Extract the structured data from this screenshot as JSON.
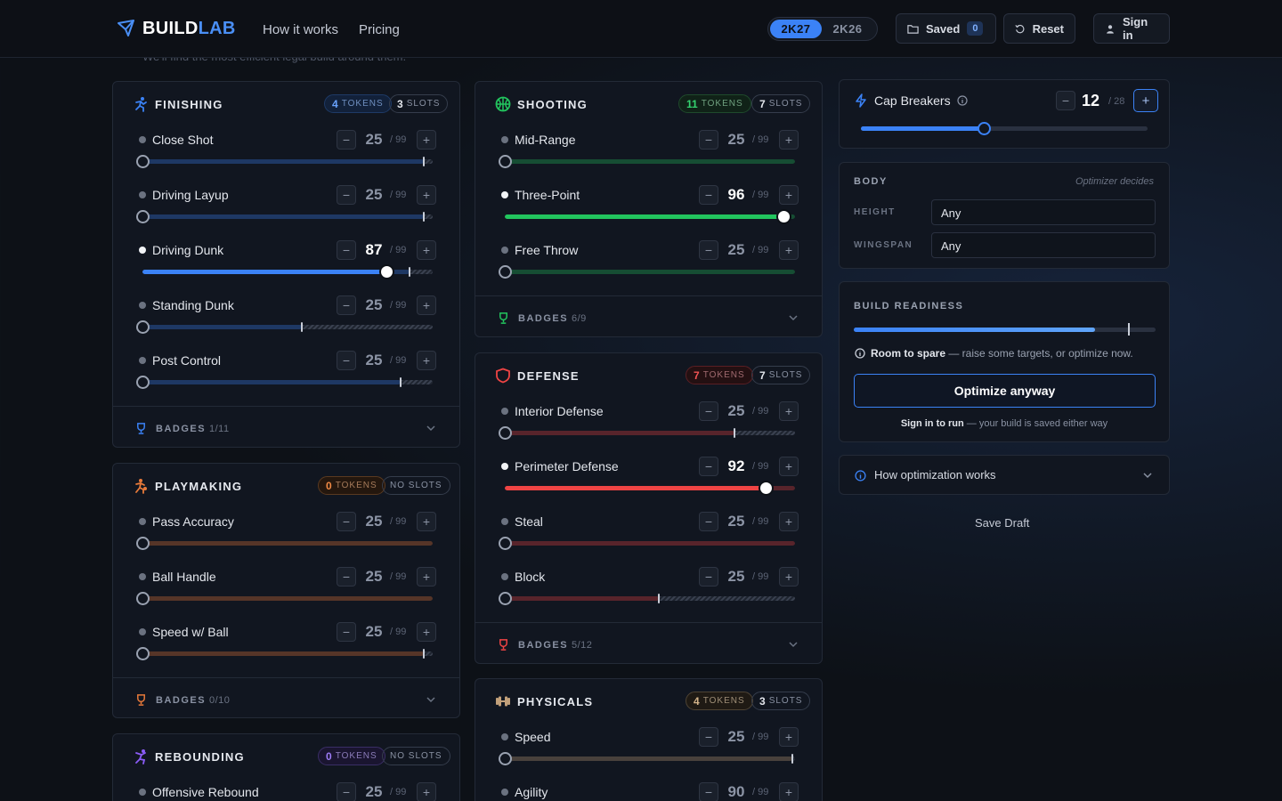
{
  "header": {
    "logo_part1": "BUILD",
    "logo_part2": "LAB",
    "nav": [
      "How it works",
      "Pricing"
    ],
    "versions": [
      "2K27",
      "2K26"
    ],
    "active_version": "2K27",
    "saved_label": "Saved",
    "saved_count": "0",
    "reset_label": "Reset",
    "signin_label": "Sign in",
    "subtext_peek": "We'll find the most efficient legal build around them."
  },
  "finishing": {
    "title": "FINISHING",
    "tokens_num": "4",
    "tokens_label": "TOKENS",
    "slots_num": "3",
    "slots_label": "SLOTS",
    "color": "#3b82f6",
    "attributes": [
      {
        "name": "Close Shot",
        "value": "25",
        "max": "/ 99",
        "cap": 0.97,
        "level": 0
      },
      {
        "name": "Driving Layup",
        "value": "25",
        "max": "/ 99",
        "cap": 0.97,
        "level": 0
      },
      {
        "name": "Driving Dunk",
        "value": "87",
        "max": "/ 99",
        "cap": 0.92,
        "level": 0.84
      },
      {
        "name": "Standing Dunk",
        "value": "25",
        "max": "/ 99",
        "cap": 0.55,
        "level": 0
      },
      {
        "name": "Post Control",
        "value": "25",
        "max": "/ 99",
        "cap": 0.89,
        "level": 0
      }
    ],
    "badges_label": "BADGES",
    "badges_count": "1/11"
  },
  "playmaking": {
    "title": "PLAYMAKING",
    "tokens_num": "0",
    "tokens_label": "TOKENS",
    "slots_label": "NO SLOTS",
    "color": "#e87a3a",
    "attributes": [
      {
        "name": "Pass Accuracy",
        "value": "25",
        "max": "/ 99",
        "cap": 1,
        "level": 0
      },
      {
        "name": "Ball Handle",
        "value": "25",
        "max": "/ 99",
        "cap": 1,
        "level": 0
      },
      {
        "name": "Speed w/ Ball",
        "value": "25",
        "max": "/ 99",
        "cap": 0.97,
        "level": 0
      }
    ],
    "badges_label": "BADGES",
    "badges_count": "0/10"
  },
  "rebounding": {
    "title": "REBOUNDING",
    "tokens_num": "0",
    "tokens_label": "TOKENS",
    "slots_label": "NO SLOTS",
    "color": "#8b5cf6",
    "attributes": [
      {
        "name": "Offensive Rebound",
        "value": "25",
        "max": "/ 99"
      }
    ]
  },
  "shooting": {
    "title": "SHOOTING",
    "tokens_num": "11",
    "tokens_label": "TOKENS",
    "slots_num": "7",
    "slots_label": "SLOTS",
    "color": "#22c55e",
    "attributes": [
      {
        "name": "Mid-Range",
        "value": "25",
        "max": "/ 99",
        "cap": 1,
        "level": 0
      },
      {
        "name": "Three-Point",
        "value": "96",
        "max": "/ 99",
        "cap": 1,
        "level": 0.96
      },
      {
        "name": "Free Throw",
        "value": "25",
        "max": "/ 99",
        "cap": 1,
        "level": 0
      }
    ],
    "badges_label": "BADGES",
    "badges_count": "6/9"
  },
  "defense": {
    "title": "DEFENSE",
    "tokens_num": "7",
    "tokens_label": "TOKENS",
    "slots_num": "7",
    "slots_label": "SLOTS",
    "color": "#ef4444",
    "attributes": [
      {
        "name": "Interior Defense",
        "value": "25",
        "max": "/ 99",
        "cap": 0.79,
        "level": 0
      },
      {
        "name": "Perimeter Defense",
        "value": "92",
        "max": "/ 99",
        "cap": 1,
        "level": 0.9
      },
      {
        "name": "Steal",
        "value": "25",
        "max": "/ 99",
        "cap": 1,
        "level": 0
      },
      {
        "name": "Block",
        "value": "25",
        "max": "/ 99",
        "cap": 0.53,
        "level": 0
      }
    ],
    "badges_label": "BADGES",
    "badges_count": "5/12"
  },
  "physicals": {
    "title": "PHYSICALS",
    "tokens_num": "4",
    "tokens_label": "TOKENS",
    "slots_num": "3",
    "slots_label": "SLOTS",
    "color": "#c2a07a",
    "attributes": [
      {
        "name": "Speed",
        "value": "25",
        "max": "/ 99",
        "cap": 0.99,
        "level": 0
      },
      {
        "name": "Agility",
        "value": "90",
        "max": "/ 99"
      }
    ]
  },
  "cap_breakers": {
    "label": "Cap Breakers",
    "value": "12",
    "max": "/ 28",
    "level": 0.43
  },
  "body": {
    "title": "BODY",
    "note": "Optimizer decides",
    "height_label": "HEIGHT",
    "height_value": "Any",
    "wingspan_label": "WINGSPAN",
    "wingspan_value": "Any"
  },
  "readiness": {
    "title": "BUILD READINESS",
    "level": 0.8,
    "marker": 0.91,
    "msg_bold": "Room to spare",
    "msg_rest": " — raise some targets, or optimize now.",
    "button": "Optimize anyway",
    "foot_bold": "Sign in to run",
    "foot_rest": " — your build is saved either way"
  },
  "how": {
    "label": "How optimization works"
  },
  "save_draft": "Save Draft"
}
